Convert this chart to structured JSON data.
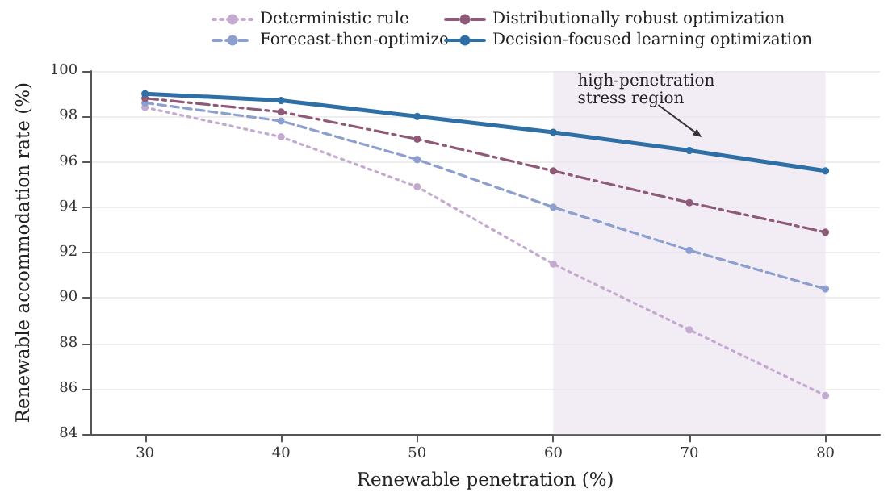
{
  "chart_data": {
    "type": "line",
    "xlabel": "Renewable penetration (%)",
    "ylabel": "Renewable accommodation rate (%)",
    "x": [
      30,
      40,
      50,
      60,
      70,
      80
    ],
    "series": [
      {
        "name": "Deterministic rule",
        "color": "#c4a9d0",
        "line_style": "dotted",
        "values": [
          98.4,
          97.1,
          94.9,
          91.5,
          88.6,
          85.7
        ]
      },
      {
        "name": "Forecast-then-optimize",
        "color": "#8c9fcf",
        "line_style": "dashed",
        "values": [
          98.6,
          97.8,
          96.1,
          94.0,
          92.1,
          90.4
        ]
      },
      {
        "name": "Distributionally robust optimization",
        "color": "#8e5a78",
        "line_style": "dashdot",
        "values": [
          98.8,
          98.2,
          97.0,
          95.6,
          94.2,
          92.9
        ]
      },
      {
        "name": "Decision-focused learning optimization",
        "color": "#2e6fa5",
        "line_style": "solid",
        "values": [
          99.0,
          98.7,
          98.0,
          97.3,
          96.5,
          95.6
        ]
      }
    ],
    "xlim": [
      26,
      84
    ],
    "xticks": [
      30,
      40,
      50,
      60,
      70,
      80
    ],
    "ylim": [
      84,
      100
    ],
    "yticks": [
      84,
      86,
      88,
      90,
      92,
      94,
      96,
      98,
      100
    ],
    "bands": [
      {
        "axis": "x",
        "from": 60,
        "to": 80,
        "color": "#ede4f1"
      }
    ],
    "annotations": [
      "high-penetration\nstress region"
    ],
    "grid": "y",
    "legend": "top",
    "marker": "circle"
  }
}
